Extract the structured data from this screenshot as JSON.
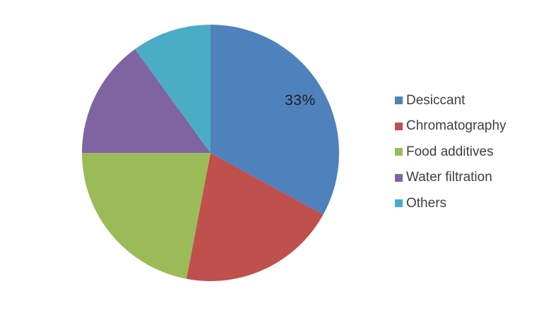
{
  "chart_data": {
    "type": "pie",
    "title": "",
    "legend_position": "right",
    "direction": "clockwise",
    "start_angle_deg": 0,
    "data_label_color": "#1F1F1F",
    "legend_text_color": "#3F3F3F",
    "background_color": "#FFFFFF",
    "slices": [
      {
        "name": "Desiccant",
        "value": 33,
        "color": "#4F81BD",
        "label": "33%"
      },
      {
        "name": "Chromatography",
        "value": 20,
        "color": "#C0504D",
        "label": ""
      },
      {
        "name": "Food additives",
        "value": 22,
        "color": "#9BBB59",
        "label": ""
      },
      {
        "name": "Water filtration",
        "value": 15,
        "color": "#8064A2",
        "label": ""
      },
      {
        "name": "Others",
        "value": 10,
        "color": "#4BACC6",
        "label": ""
      }
    ]
  }
}
